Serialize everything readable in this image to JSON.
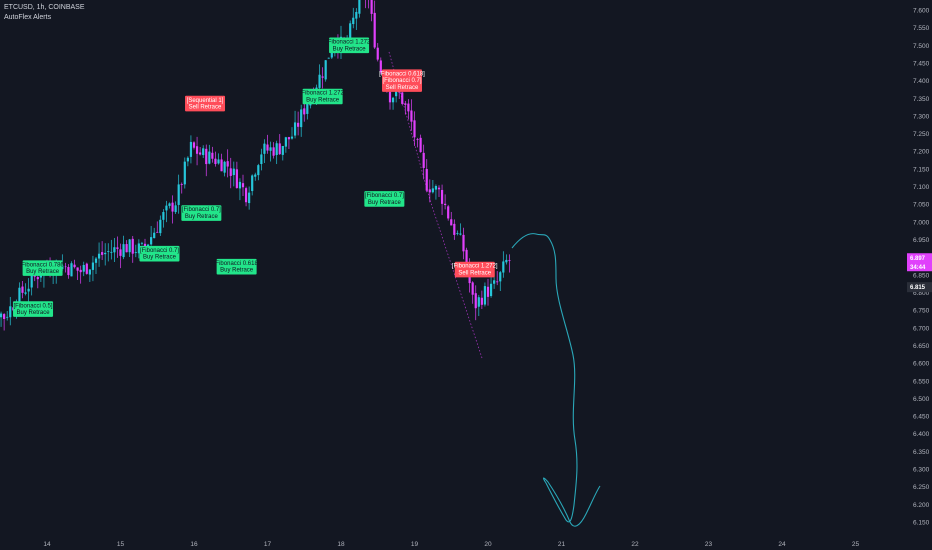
{
  "header": {
    "symbol_line": "ETCUSD, 1h, COINBASE",
    "indicator_name": "AutoFlex Alerts"
  },
  "colors": {
    "background": "#131722",
    "up_candle": "#26c6da",
    "down_candle": "#e040fb",
    "buy_label": "#22e58a",
    "sell_label": "#ff4d5a",
    "drawing": "#2aa7b8",
    "axis_text": "#b2b5be"
  },
  "y_axis": {
    "ticks": [
      7.6,
      7.55,
      7.5,
      7.45,
      7.4,
      7.35,
      7.3,
      7.25,
      7.2,
      7.15,
      7.1,
      7.05,
      7.0,
      6.95,
      6.9,
      6.85,
      6.8,
      6.75,
      6.7,
      6.65,
      6.6,
      6.55,
      6.5,
      6.45,
      6.4,
      6.35,
      6.3,
      6.25,
      6.2,
      6.15
    ],
    "tick_labels": [
      "7.600",
      "7.550",
      "7.500",
      "7.450",
      "7.400",
      "7.350",
      "7.300",
      "7.250",
      "7.200",
      "7.150",
      "7.100",
      "7.050",
      "7.000",
      "6.950",
      "6.900",
      "6.850",
      "6.800",
      "6.750",
      "6.700",
      "6.650",
      "6.600",
      "6.550",
      "6.500",
      "6.450",
      "6.400",
      "6.350",
      "6.300",
      "6.250",
      "6.200",
      "6.150"
    ],
    "range": [
      6.12,
      7.63
    ]
  },
  "x_axis": {
    "labels": [
      "14",
      "15",
      "16",
      "17",
      "18",
      "19",
      "20",
      "21",
      "22",
      "23",
      "24",
      "25"
    ]
  },
  "price_tags": [
    {
      "text": "6.897",
      "sub": "34:44",
      "color": "#e040fb",
      "value": 6.897
    },
    {
      "text": "6.815",
      "color": "#2a2e39",
      "value": 6.815
    }
  ],
  "signals": [
    {
      "line1": "[Fibonacci 0.5]",
      "line2": "Buy Retrace",
      "type": "buy",
      "x_day": 13.81,
      "price": 6.753
    },
    {
      "line1": "[Fibonacci 0.786]",
      "line2": "Buy Retrace",
      "type": "buy",
      "x_day": 13.94,
      "price": 6.869
    },
    {
      "line1": "[Fibonacci 0.7]",
      "line2": "Buy Retrace",
      "type": "buy",
      "x_day": 15.53,
      "price": 6.91
    },
    {
      "line1": "[Sequential 1]",
      "line2": "Sell Retrace",
      "type": "sell",
      "x_day": 16.15,
      "price": 7.335
    },
    {
      "line1": "[Fibonacci 0.7]",
      "line2": "Buy Retrace",
      "type": "buy",
      "x_day": 16.1,
      "price": 7.025
    },
    {
      "line1": "[Fibonacci 0.618]",
      "line2": "Buy Retrace",
      "type": "buy",
      "x_day": 16.58,
      "price": 6.873
    },
    {
      "line1": "[Fibonacci 1.272]",
      "line2": "Buy Retrace",
      "type": "buy",
      "x_day": 17.75,
      "price": 7.355
    },
    {
      "line1": "[Fibonacci 1.272]",
      "line2": "Buy Retrace",
      "type": "buy",
      "x_day": 18.11,
      "price": 7.5
    },
    {
      "line1": "[Fibonacci 0.618]",
      "line2": "[Fibonacci 0.7]",
      "line3": "Sell Retrace",
      "type": "sell",
      "x_day": 18.83,
      "price": 7.4
    },
    {
      "line1": "[Fibonacci 0.7]",
      "line2": "Buy Retrace",
      "type": "buy",
      "x_day": 18.59,
      "price": 7.065
    },
    {
      "line1": "[Fibonacci 1.272]",
      "line2": "Sell Retrace",
      "type": "sell",
      "x_day": 19.82,
      "price": 6.865
    }
  ]
}
